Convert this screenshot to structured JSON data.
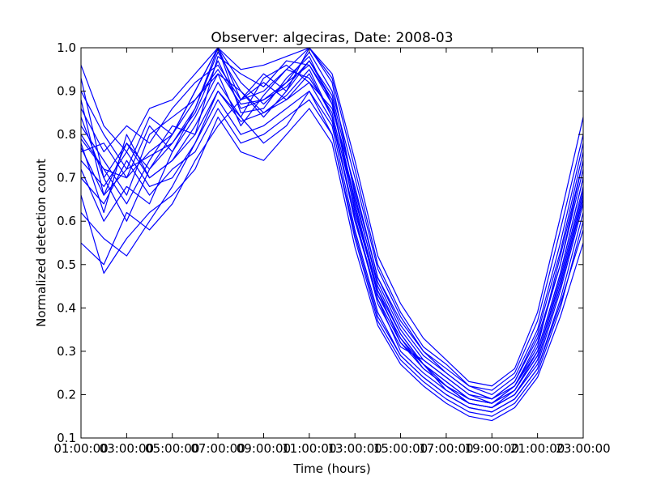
{
  "chart_data": {
    "type": "line",
    "title": "Observer: algeciras, Date: 2008-03",
    "xlabel": "Time (hours)",
    "ylabel": "Normalized detection count",
    "xlim": [
      1,
      23
    ],
    "ylim": [
      0.1,
      1.0
    ],
    "x_ticks": [
      1,
      3,
      5,
      7,
      9,
      11,
      13,
      15,
      17,
      19,
      21,
      23
    ],
    "x_tick_labels": [
      "01:00:00",
      "03:00:00",
      "05:00:00",
      "07:00:00",
      "09:00:00",
      "11:00:00",
      "13:00:00",
      "15:00:00",
      "17:00:00",
      "19:00:00",
      "21:00:00",
      "23:00:00"
    ],
    "y_ticks": [
      0.1,
      0.2,
      0.3,
      0.4,
      0.5,
      0.6,
      0.7,
      0.8,
      0.9,
      1.0
    ],
    "y_tick_labels": [
      "0.1",
      "0.2",
      "0.3",
      "0.4",
      "0.5",
      "0.6",
      "0.7",
      "0.8",
      "0.9",
      "1.0"
    ],
    "line_color": "#0000ff",
    "x": [
      1,
      2,
      3,
      4,
      5,
      6,
      7,
      8,
      9,
      10,
      11,
      12,
      13,
      14,
      15,
      16,
      17,
      18,
      19,
      20,
      21,
      22,
      23
    ],
    "series": [
      {
        "values": [
          0.93,
          0.7,
          0.78,
          0.72,
          0.8,
          0.9,
          1.0,
          0.88,
          0.9,
          0.95,
          1.0,
          0.92,
          0.66,
          0.45,
          0.34,
          0.27,
          0.23,
          0.19,
          0.18,
          0.21,
          0.3,
          0.48,
          0.7
        ]
      },
      {
        "values": [
          0.88,
          0.66,
          0.72,
          0.75,
          0.78,
          0.85,
          0.97,
          0.86,
          0.88,
          0.91,
          0.97,
          0.88,
          0.64,
          0.43,
          0.33,
          0.26,
          0.22,
          0.18,
          0.17,
          0.2,
          0.28,
          0.45,
          0.66
        ]
      },
      {
        "values": [
          0.82,
          0.74,
          0.66,
          0.8,
          0.84,
          0.88,
          0.94,
          0.9,
          0.85,
          0.89,
          0.95,
          0.84,
          0.61,
          0.41,
          0.31,
          0.28,
          0.24,
          0.2,
          0.19,
          0.22,
          0.31,
          0.52,
          0.74
        ]
      },
      {
        "values": [
          0.78,
          0.62,
          0.8,
          0.7,
          0.74,
          0.82,
          0.92,
          0.84,
          0.93,
          0.96,
          0.92,
          0.86,
          0.68,
          0.47,
          0.36,
          0.29,
          0.25,
          0.21,
          0.19,
          0.23,
          0.33,
          0.5,
          0.72
        ]
      },
      {
        "values": [
          0.76,
          0.78,
          0.7,
          0.82,
          0.76,
          0.86,
          1.0,
          0.92,
          0.87,
          0.92,
          0.99,
          0.9,
          0.7,
          0.49,
          0.38,
          0.3,
          0.26,
          0.22,
          0.2,
          0.24,
          0.35,
          0.55,
          0.78
        ]
      },
      {
        "values": [
          0.74,
          0.68,
          0.76,
          0.68,
          0.7,
          0.78,
          0.88,
          0.8,
          0.82,
          0.86,
          0.9,
          0.82,
          0.58,
          0.39,
          0.29,
          0.24,
          0.2,
          0.17,
          0.16,
          0.19,
          0.26,
          0.42,
          0.62
        ]
      },
      {
        "values": [
          0.8,
          0.72,
          0.64,
          0.74,
          0.82,
          0.8,
          0.98,
          0.94,
          0.91,
          0.97,
          0.96,
          0.88,
          0.62,
          0.44,
          0.32,
          0.27,
          0.21,
          0.18,
          0.17,
          0.21,
          0.29,
          0.47,
          0.68
        ]
      },
      {
        "values": [
          0.7,
          0.64,
          0.74,
          0.66,
          0.72,
          0.76,
          0.86,
          0.78,
          0.8,
          0.84,
          0.88,
          0.8,
          0.56,
          0.37,
          0.28,
          0.23,
          0.19,
          0.16,
          0.15,
          0.18,
          0.25,
          0.4,
          0.6
        ]
      },
      {
        "values": [
          0.86,
          0.76,
          0.82,
          0.78,
          0.86,
          0.92,
          0.96,
          0.88,
          0.94,
          0.9,
          1.0,
          0.93,
          0.72,
          0.5,
          0.39,
          0.31,
          0.27,
          0.22,
          0.21,
          0.25,
          0.37,
          0.58,
          0.8
        ]
      },
      {
        "values": [
          0.9,
          0.8,
          0.72,
          0.84,
          0.8,
          0.9,
          1.0,
          0.85,
          0.86,
          0.93,
          0.98,
          0.87,
          0.65,
          0.46,
          0.35,
          0.28,
          0.24,
          0.2,
          0.18,
          0.22,
          0.32,
          0.5,
          0.74
        ]
      },
      {
        "values": [
          0.55,
          0.5,
          0.62,
          0.58,
          0.64,
          0.74,
          0.82,
          0.88,
          0.92,
          0.88,
          0.94,
          0.84,
          0.6,
          0.42,
          0.3,
          0.25,
          0.21,
          0.18,
          0.17,
          0.2,
          0.27,
          0.44,
          0.64
        ]
      },
      {
        "values": [
          0.62,
          0.56,
          0.52,
          0.6,
          0.68,
          0.78,
          0.9,
          0.84,
          0.78,
          0.82,
          0.9,
          0.8,
          0.57,
          0.38,
          0.29,
          0.24,
          0.2,
          0.17,
          0.16,
          0.19,
          0.26,
          0.41,
          0.58
        ]
      },
      {
        "values": [
          0.72,
          0.6,
          0.68,
          0.64,
          0.76,
          0.84,
          0.94,
          0.82,
          0.89,
          0.95,
          0.93,
          0.85,
          0.63,
          0.43,
          0.33,
          0.27,
          0.22,
          0.19,
          0.18,
          0.21,
          0.29,
          0.46,
          0.67
        ]
      },
      {
        "values": [
          0.84,
          0.7,
          0.6,
          0.72,
          0.78,
          0.86,
          0.99,
          0.9,
          0.84,
          0.9,
          0.97,
          0.89,
          0.67,
          0.47,
          0.37,
          0.3,
          0.25,
          0.21,
          0.19,
          0.23,
          0.34,
          0.53,
          0.76
        ]
      },
      {
        "values": [
          0.96,
          0.82,
          0.76,
          0.86,
          0.88,
          0.94,
          1.0,
          0.95,
          0.96,
          0.98,
          1.0,
          0.94,
          0.74,
          0.52,
          0.41,
          0.33,
          0.28,
          0.23,
          0.22,
          0.26,
          0.39,
          0.61,
          0.84
        ]
      },
      {
        "values": [
          0.66,
          0.48,
          0.56,
          0.62,
          0.66,
          0.72,
          0.84,
          0.76,
          0.74,
          0.8,
          0.86,
          0.78,
          0.54,
          0.36,
          0.27,
          0.22,
          0.18,
          0.15,
          0.14,
          0.17,
          0.24,
          0.38,
          0.55
        ]
      },
      {
        "values": [
          0.77,
          0.66,
          0.78,
          0.7,
          0.74,
          0.8,
          0.9,
          0.83,
          0.85,
          0.88,
          0.92,
          0.83,
          0.61,
          0.42,
          0.32,
          0.26,
          0.22,
          0.18,
          0.17,
          0.2,
          0.28,
          0.45,
          0.65
        ]
      },
      {
        "values": [
          0.79,
          0.72,
          0.7,
          0.76,
          0.8,
          0.88,
          0.95,
          0.87,
          0.88,
          0.92,
          0.96,
          0.87,
          0.64,
          0.44,
          0.34,
          0.27,
          0.23,
          0.19,
          0.18,
          0.22,
          0.3,
          0.48,
          0.7
        ]
      }
    ]
  }
}
